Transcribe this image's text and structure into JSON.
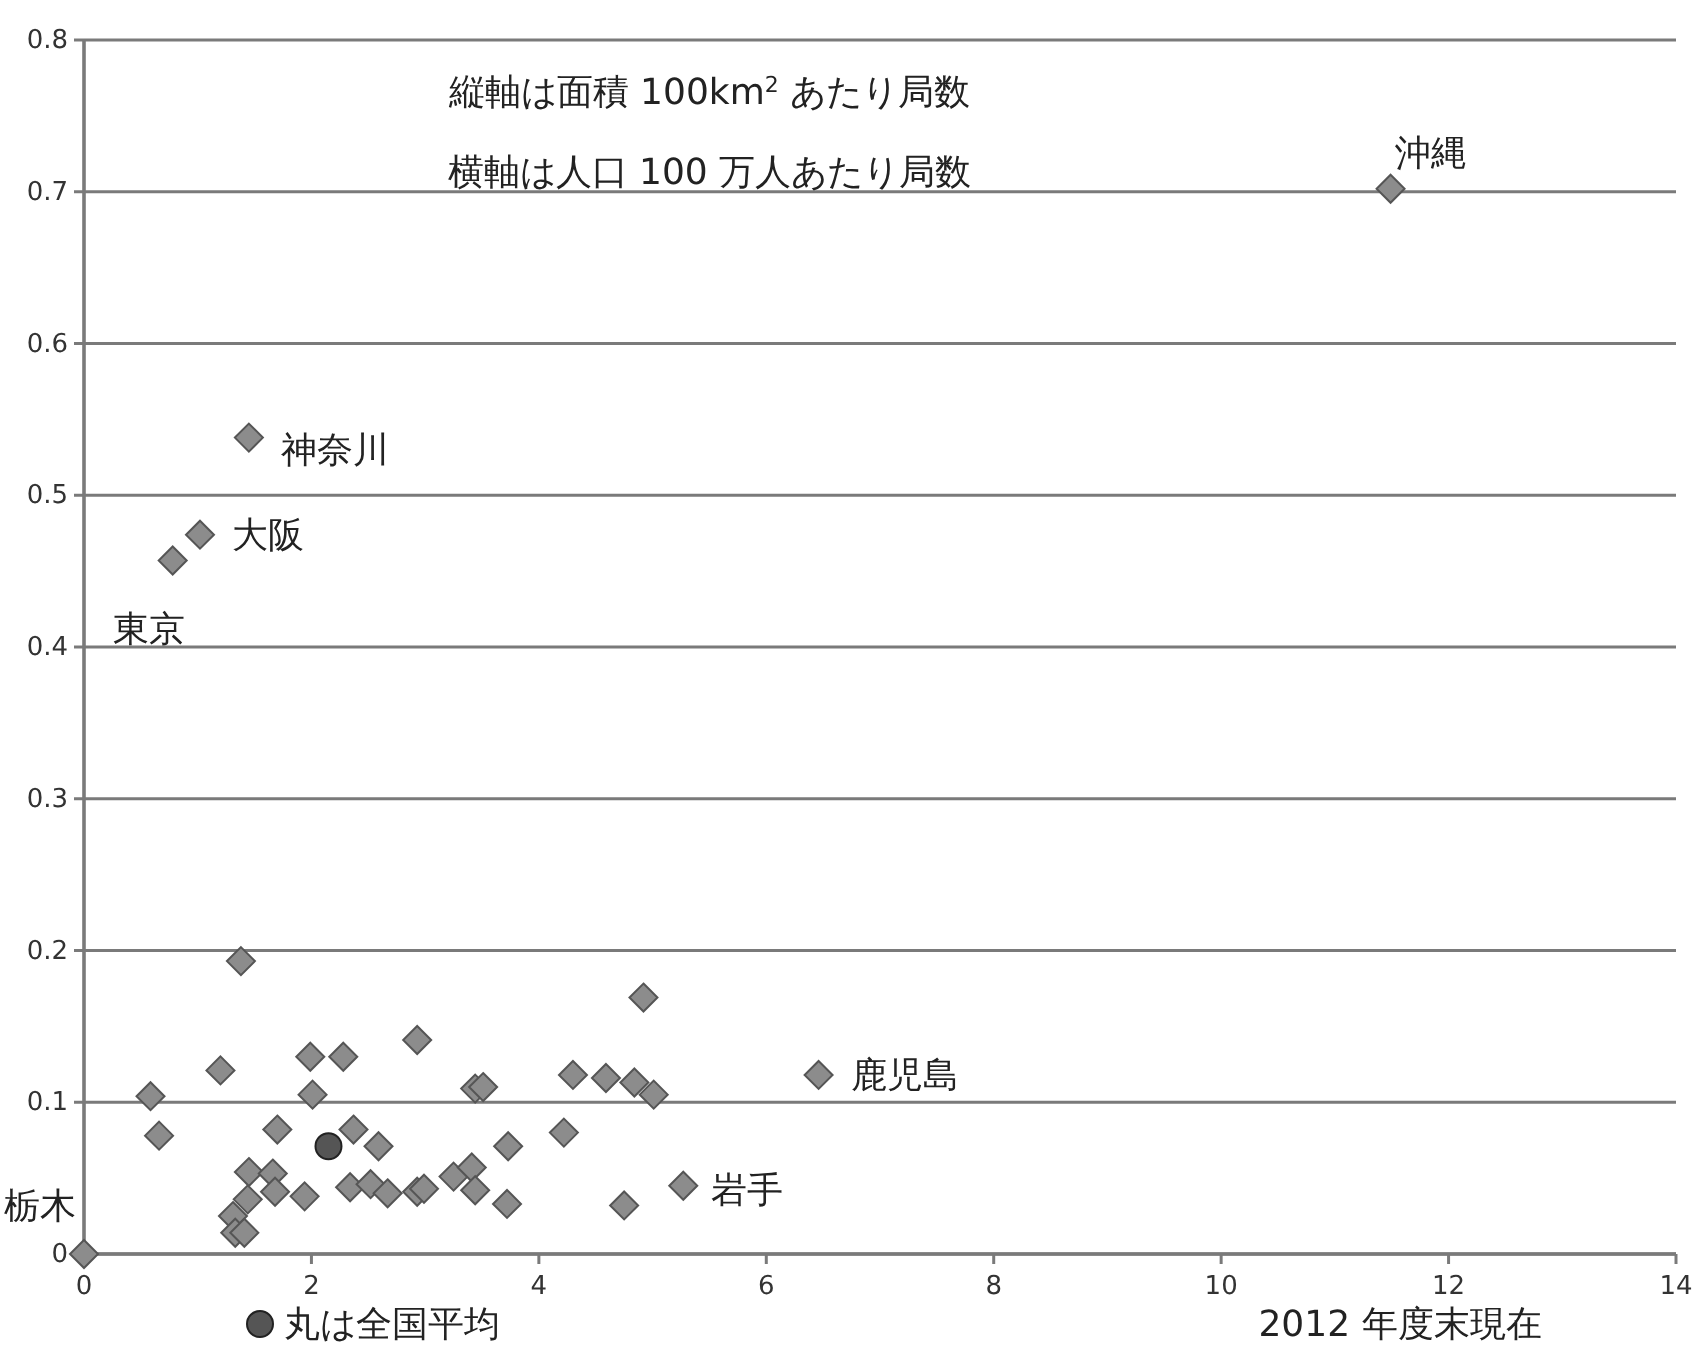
{
  "chart_data": {
    "type": "scatter",
    "xlim": [
      0,
      14
    ],
    "ylim": [
      0,
      0.8
    ],
    "xticks": [
      0,
      2,
      4,
      6,
      8,
      10,
      12,
      14
    ],
    "yticks": [
      0,
      0.1,
      0.2,
      0.3,
      0.4,
      0.5,
      0.6,
      0.7,
      0.8
    ],
    "grid": "y",
    "legend": "bottom left",
    "marker": "diamond",
    "series": [
      {
        "color": "#8c8c8c",
        "x": [
          0,
          0.585,
          0.66,
          1.2,
          1.38,
          1.31,
          1.33,
          1.41,
          1.44,
          1.45,
          1.66,
          1.68,
          1.7,
          1.94,
          1.99,
          2.01,
          2.28,
          2.37,
          2.34,
          2.52,
          2.59,
          2.67,
          2.93,
          2.93,
          2.99,
          3.25,
          3.41,
          3.44,
          3.44,
          3.51,
          3.73,
          3.72,
          4.22,
          4.3,
          4.59,
          4.75,
          4.84,
          4.92,
          5.01,
          5.27,
          6.46,
          1.45,
          1.02,
          0.78,
          11.49
        ],
        "values": [
          0,
          0.104,
          0.078,
          0.121,
          0.193,
          0.025,
          0.014,
          0.014,
          0.036,
          0.054,
          0.053,
          0.041,
          0.082,
          0.038,
          0.13,
          0.105,
          0.13,
          0.082,
          0.044,
          0.046,
          0.071,
          0.04,
          0.141,
          0.041,
          0.043,
          0.051,
          0.057,
          0.042,
          0.109,
          0.11,
          0.071,
          0.033,
          0.08,
          0.118,
          0.116,
          0.032,
          0.113,
          0.169,
          0.105,
          0.045,
          0.118,
          0.538,
          0.474,
          0.457,
          0.702
        ]
      },
      {
        "name": "丸は全国平均",
        "color": "#555555",
        "marker": "circle",
        "x": [
          2.15
        ],
        "values": [
          0.071
        ]
      }
    ],
    "annotations": [
      "縦軸は面積 100km$^{2}$ あたり局数",
      "横軸は人口 100 万人あたり局数",
      "2012 年度末現在",
      {
        "text": "沖縄",
        "x": 11.49,
        "y": 0.702
      },
      {
        "text": "神奈川",
        "x": 1.45,
        "y": 0.538
      },
      {
        "text": "大阪",
        "x": 1.02,
        "y": 0.474
      },
      {
        "text": "東京",
        "x": 0.78,
        "y": 0.457
      },
      {
        "text": "鹿児島",
        "x": 6.46,
        "y": 0.118
      },
      {
        "text": "岩手",
        "x": 5.27,
        "y": 0.045
      },
      {
        "text": "栃木",
        "x": 0,
        "y": 0
      }
    ]
  }
}
